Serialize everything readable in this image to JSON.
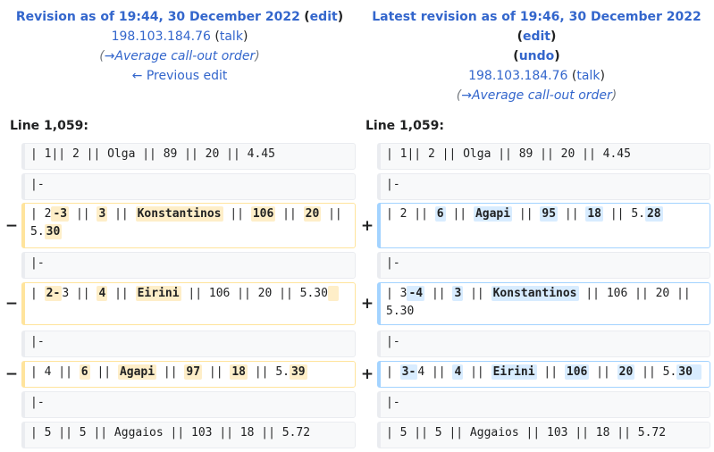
{
  "left_header": {
    "title_prefix": "Revision as of 19:44, 30 December 2022",
    "edit_label": "edit",
    "user": "198.103.184.76",
    "talk_label": "talk",
    "summary": "→Average call-out order",
    "prev_edit_label": "← Previous edit"
  },
  "right_header": {
    "title_prefix": "Latest revision as of 19:46, 30 December 2022",
    "edit_label": "edit",
    "undo_label": "undo",
    "user": "198.103.184.76",
    "talk_label": "talk",
    "summary": "→Average call-out order"
  },
  "line_label": "Line 1,059:",
  "markers": {
    "minus": "−",
    "plus": "+"
  },
  "diff_rows": [
    {
      "type": "context",
      "left": [
        {
          "t": "| 1|| 2 || Olga || 89 || 20 || 4.45"
        }
      ],
      "right": [
        {
          "t": "| 1|| 2 || Olga || 89 || 20 || 4.45"
        }
      ]
    },
    {
      "type": "context",
      "left": [
        {
          "t": "|-"
        }
      ],
      "right": [
        {
          "t": "|-"
        }
      ]
    },
    {
      "type": "change",
      "left": [
        {
          "t": "| 2"
        },
        {
          "t": "-3",
          "h": 1
        },
        {
          "t": " || "
        },
        {
          "t": "3",
          "h": 1
        },
        {
          "t": " || "
        },
        {
          "t": "Konstantinos",
          "h": 1
        },
        {
          "t": " || "
        },
        {
          "t": "106",
          "h": 1
        },
        {
          "t": " || "
        },
        {
          "t": "20",
          "h": 1
        },
        {
          "t": " || 5."
        },
        {
          "t": "30",
          "h": 1
        }
      ],
      "right": [
        {
          "t": "| 2 || "
        },
        {
          "t": "6",
          "h": 1
        },
        {
          "t": " || "
        },
        {
          "t": "Agapi",
          "h": 1
        },
        {
          "t": " || "
        },
        {
          "t": "95",
          "h": 1
        },
        {
          "t": " || "
        },
        {
          "t": "18",
          "h": 1
        },
        {
          "t": " || 5."
        },
        {
          "t": "28",
          "h": 1
        }
      ]
    },
    {
      "type": "context",
      "left": [
        {
          "t": "|-"
        }
      ],
      "right": [
        {
          "t": "|-"
        }
      ]
    },
    {
      "type": "change",
      "left": [
        {
          "t": "| "
        },
        {
          "t": "2-",
          "h": 1
        },
        {
          "t": "3 || "
        },
        {
          "t": "4",
          "h": 1
        },
        {
          "t": " || "
        },
        {
          "t": "Eirini",
          "h": 1
        },
        {
          "t": " || 106 || 20 || 5.30"
        },
        {
          "t": " ",
          "h": 1
        }
      ],
      "right": [
        {
          "t": "| 3"
        },
        {
          "t": "-4",
          "h": 1
        },
        {
          "t": " || "
        },
        {
          "t": "3",
          "h": 1
        },
        {
          "t": " || "
        },
        {
          "t": "Konstantinos",
          "h": 1
        },
        {
          "t": " || 106 || 20 || 5.30"
        }
      ]
    },
    {
      "type": "context",
      "left": [
        {
          "t": "|-"
        }
      ],
      "right": [
        {
          "t": "|-"
        }
      ]
    },
    {
      "type": "change",
      "left": [
        {
          "t": "| 4 || "
        },
        {
          "t": "6",
          "h": 1
        },
        {
          "t": " || "
        },
        {
          "t": "Agapi",
          "h": 1
        },
        {
          "t": " || "
        },
        {
          "t": "97",
          "h": 1
        },
        {
          "t": " || "
        },
        {
          "t": "18",
          "h": 1
        },
        {
          "t": " || 5."
        },
        {
          "t": "39",
          "h": 1
        }
      ],
      "right": [
        {
          "t": "| "
        },
        {
          "t": "3-",
          "h": 1
        },
        {
          "t": "4 || "
        },
        {
          "t": "4",
          "h": 1
        },
        {
          "t": " || "
        },
        {
          "t": "Eirini",
          "h": 1
        },
        {
          "t": " || "
        },
        {
          "t": "106",
          "h": 1
        },
        {
          "t": " || "
        },
        {
          "t": "20",
          "h": 1
        },
        {
          "t": " || 5."
        },
        {
          "t": "30 ",
          "h": 1
        }
      ]
    },
    {
      "type": "context",
      "left": [
        {
          "t": "|-"
        }
      ],
      "right": [
        {
          "t": "|-"
        }
      ]
    },
    {
      "type": "context",
      "left": [
        {
          "t": "| 5 || 5 || Aggaios || 103 || 18 || 5.72"
        }
      ],
      "right": [
        {
          "t": "| 5 || 5 || Aggaios || 103 || 18 || 5.72"
        }
      ]
    }
  ]
}
